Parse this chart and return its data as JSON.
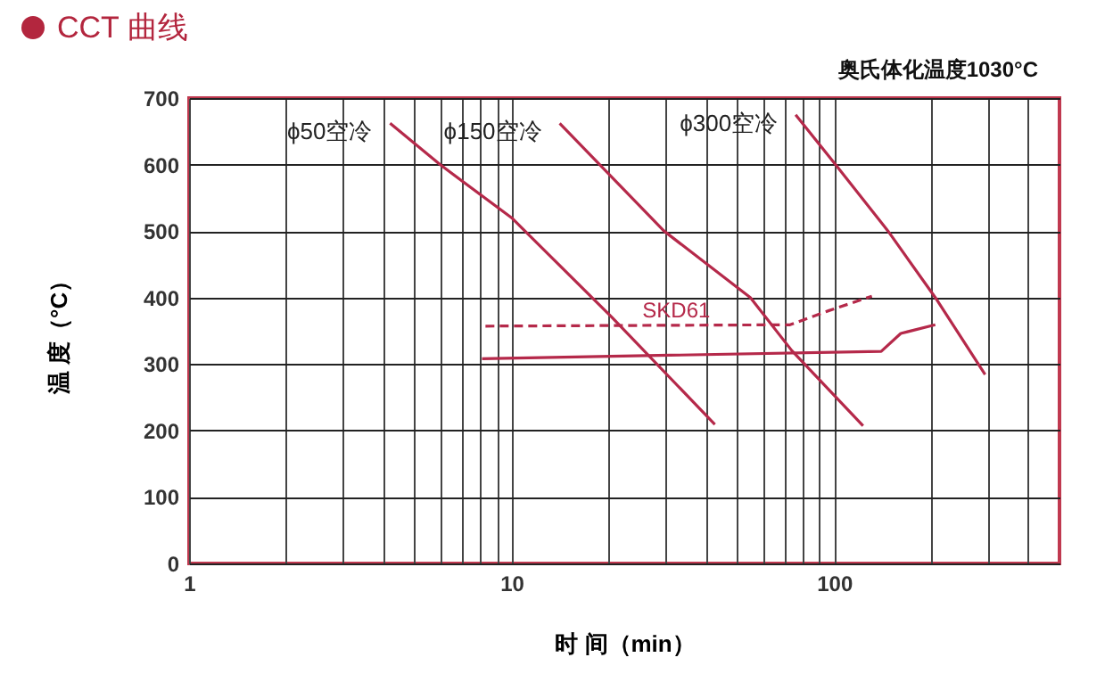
{
  "chart_data": {
    "type": "line",
    "title": "CCT 曲线",
    "xlabel": "时 间（min）",
    "ylabel": "温 度（°C）",
    "log": "x",
    "xlim": [
      1,
      500
    ],
    "ylim": [
      0,
      700
    ],
    "xticks": [
      1,
      {
        "value": 2,
        "label": null
      },
      {
        "value": 3,
        "label": null
      },
      {
        "value": 4,
        "label": null
      },
      {
        "value": 5,
        "label": null
      },
      {
        "value": 6,
        "label": null
      },
      {
        "value": 7,
        "label": null
      },
      {
        "value": 8,
        "label": null
      },
      {
        "value": 9,
        "label": null
      },
      10,
      {
        "value": 20,
        "label": null
      },
      {
        "value": 30,
        "label": null
      },
      {
        "value": 40,
        "label": null
      },
      {
        "value": 50,
        "label": null
      },
      {
        "value": 60,
        "label": null
      },
      {
        "value": 70,
        "label": null
      },
      {
        "value": 80,
        "label": null
      },
      {
        "value": 90,
        "label": null
      },
      100,
      {
        "value": 200,
        "label": null
      },
      {
        "value": 300,
        "label": null
      },
      {
        "value": 400,
        "label": null
      }
    ],
    "yticks": [
      0,
      100,
      200,
      300,
      400,
      500,
      600,
      700
    ],
    "grid": true,
    "series": [
      {
        "name": "ϕ50空冷",
        "color": "#b5294a",
        "line_style": "solid",
        "x": [
          4.2,
          6,
          10,
          20.5,
          42.7
        ],
        "values": [
          662,
          600,
          520,
          370,
          209
        ]
      },
      {
        "name": "ϕ150空冷",
        "color": "#b5294a",
        "line_style": "solid",
        "x": [
          14.1,
          29.7,
          55,
          74,
          123
        ],
        "values": [
          662,
          500,
          400,
          320,
          207
        ]
      },
      {
        "name": "ϕ300空冷",
        "color": "#b5294a",
        "line_style": "solid",
        "x": [
          76,
          101,
          147,
          206,
          294
        ],
        "values": [
          675,
          600,
          500,
          400,
          284
        ]
      },
      {
        "name": "SKD61",
        "color": "#b5294a",
        "line_style": "dashed",
        "x": [
          8.3,
          73,
          96,
          131
        ],
        "values": [
          357,
          359,
          380,
          402
        ]
      },
      {
        "color": "#b5294a",
        "line_style": "solid",
        "x": [
          8.1,
          140,
          161,
          206
        ],
        "values": [
          308,
          319,
          346,
          359
        ]
      }
    ],
    "annotations": [
      "奥氏体化温度1030°C"
    ]
  }
}
